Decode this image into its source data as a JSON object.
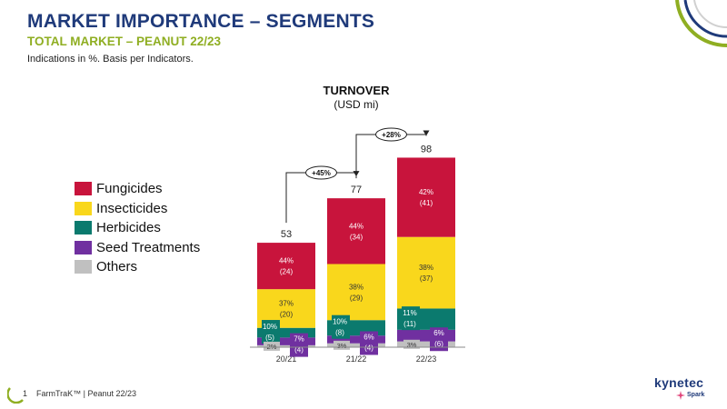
{
  "header": {
    "title": "MARKET IMPORTANCE  – SEGMENTS",
    "subtitle": "TOTAL MARKET – PEANUT 22/23",
    "note": "Indications in %. Basis per Indicators."
  },
  "footer": {
    "page": "1",
    "text": "FarmTraK™ | Peanut 22/23"
  },
  "logo": {
    "brand": "kynetec",
    "sub": "Spark"
  },
  "colors": {
    "Fungicides": "#c8143c",
    "Insecticides": "#f9d71c",
    "Herbicides": "#0b7a6e",
    "Seed Treatments": "#7030a0",
    "Others": "#c0c0c0"
  },
  "chart_data": {
    "type": "bar",
    "stacked": true,
    "title": "TURNOVER",
    "subtitle": "(USD mi)",
    "categories": [
      "20/21",
      "21/22",
      "22/23"
    ],
    "totals": [
      "53",
      "77",
      "98"
    ],
    "growth": [
      {
        "from": "20/21",
        "to": "21/22",
        "label": "+45%"
      },
      {
        "from": "21/22",
        "to": "22/23",
        "label": "+28%"
      }
    ],
    "series": [
      {
        "name": "Others",
        "values": [
          1,
          2,
          3
        ],
        "pct": [
          "2%",
          "3%",
          "3%"
        ],
        "abs": [
          "",
          "",
          ""
        ]
      },
      {
        "name": "Seed Treatments",
        "values": [
          4,
          4,
          6
        ],
        "pct": [
          "7%",
          "6%",
          "6%"
        ],
        "abs": [
          "(4)",
          "(4)",
          "(6)"
        ]
      },
      {
        "name": "Herbicides",
        "values": [
          5,
          8,
          11
        ],
        "pct": [
          "10%",
          "10%",
          "11%"
        ],
        "abs": [
          "(5)",
          "(8)",
          "(11)"
        ]
      },
      {
        "name": "Insecticides",
        "values": [
          20,
          29,
          37
        ],
        "pct": [
          "37%",
          "38%",
          "38%"
        ],
        "abs": [
          "(20)",
          "(29)",
          "(37)"
        ]
      },
      {
        "name": "Fungicides",
        "values": [
          24,
          34,
          41
        ],
        "pct": [
          "44%",
          "44%",
          "42%"
        ],
        "abs": [
          "(24)",
          "(34)",
          "(41)"
        ]
      }
    ],
    "legend": [
      "Fungicides",
      "Insecticides",
      "Herbicides",
      "Seed Treatments",
      "Others"
    ]
  }
}
